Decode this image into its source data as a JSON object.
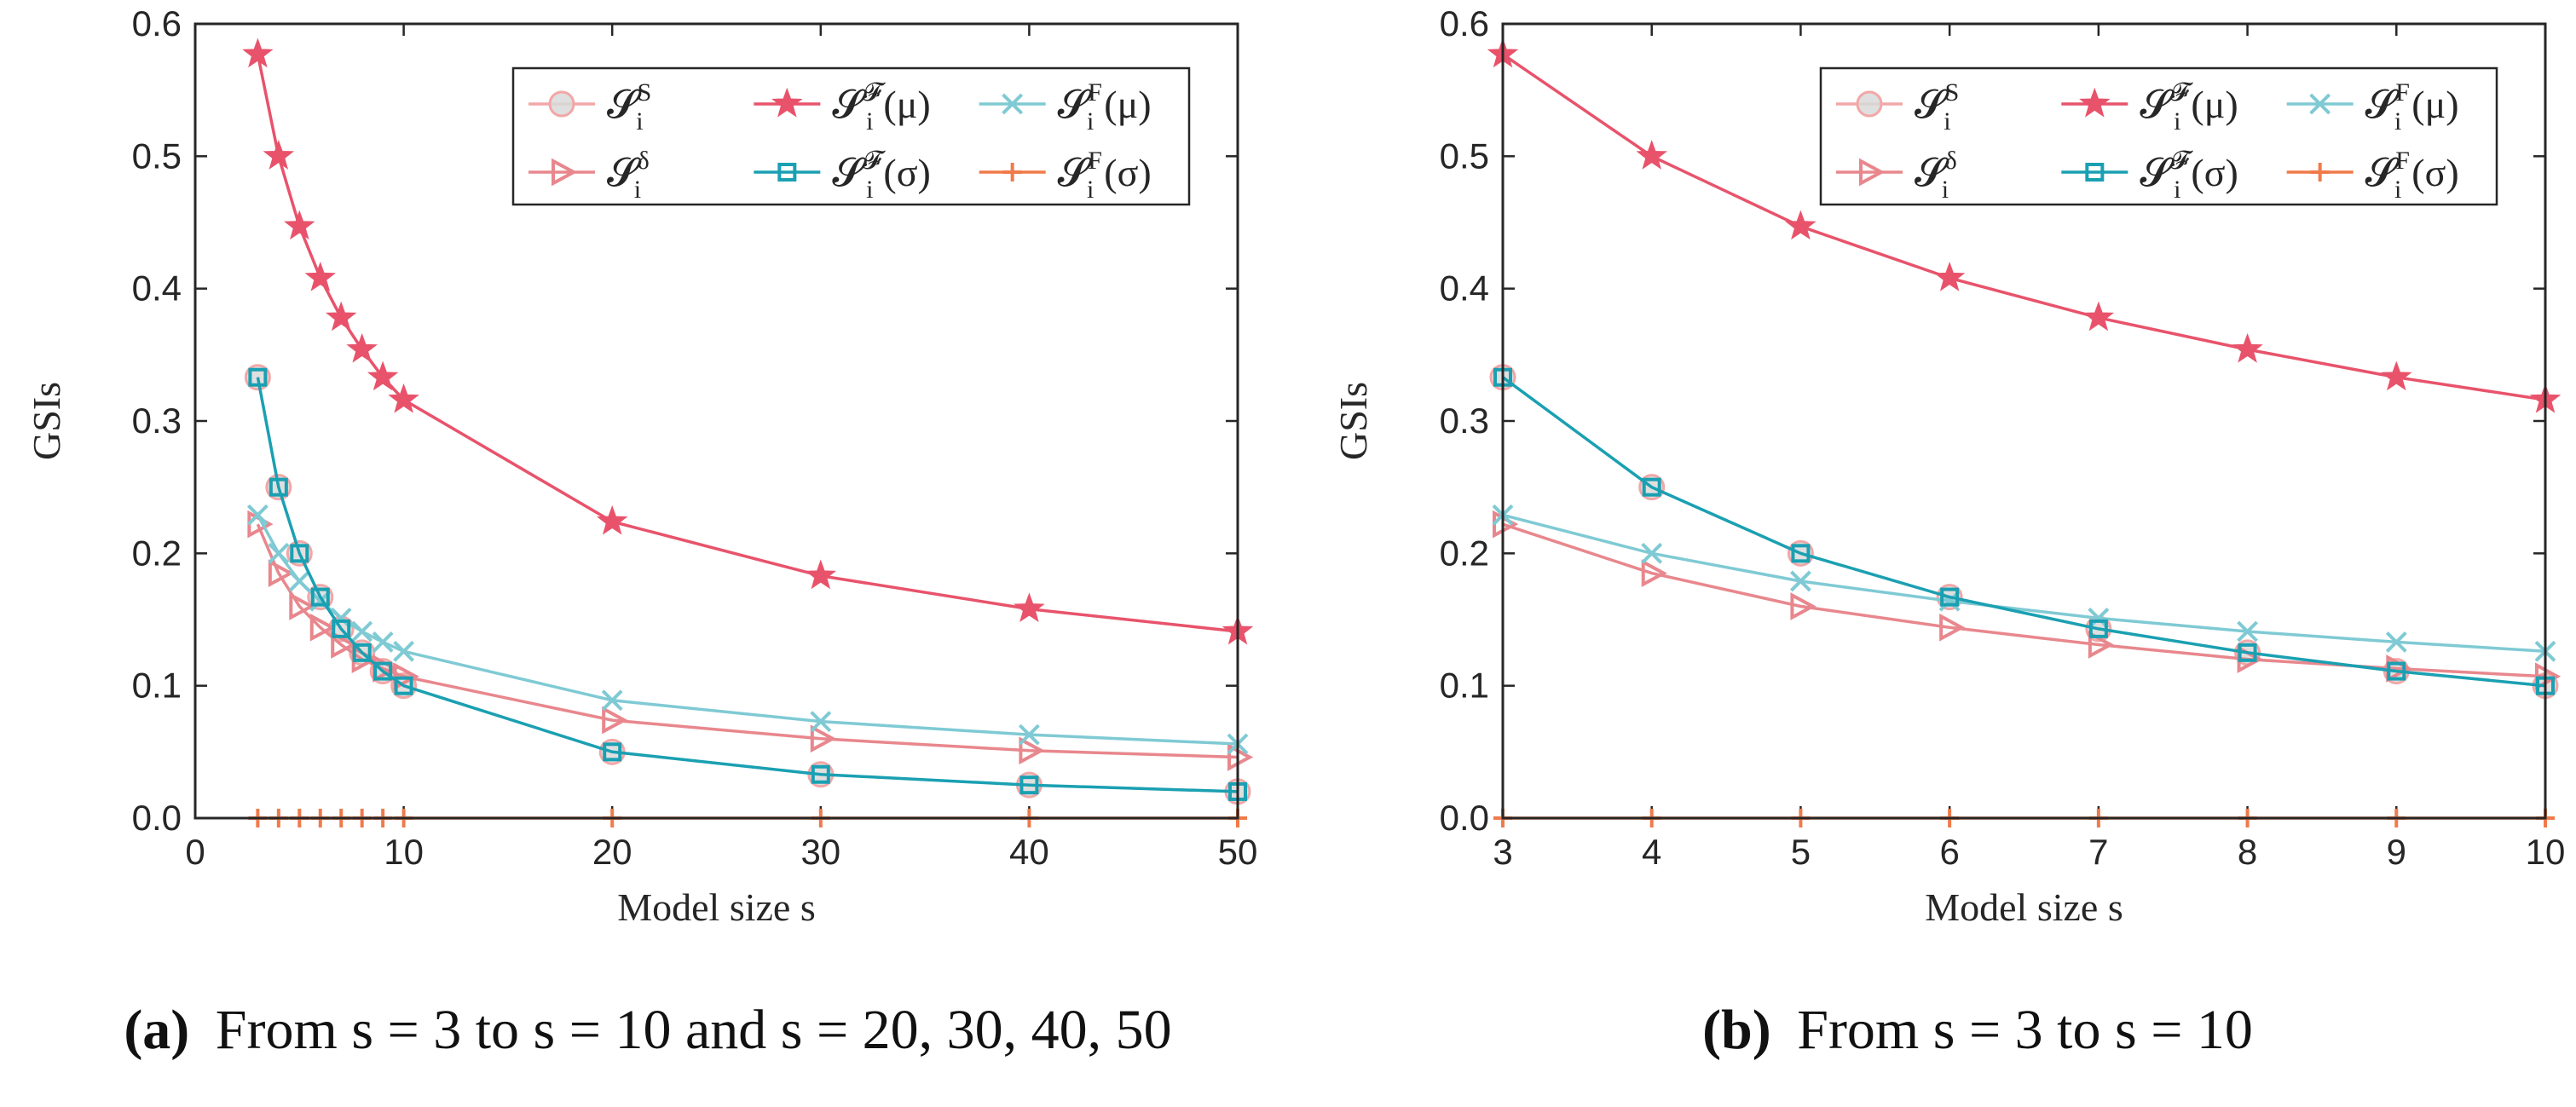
{
  "chart_data": [
    {
      "type": "line",
      "id": "a",
      "caption_label": "(a)",
      "caption_text": "From s = 3 to s = 10 and s = 20, 30, 40, 50",
      "xlabel": "Model size s",
      "ylabel": "GSIs",
      "xlim": [
        0,
        50
      ],
      "ylim": [
        0,
        0.6
      ],
      "xticks": [
        0,
        10,
        20,
        30,
        40,
        50
      ],
      "yticks": [
        0.0,
        0.1,
        0.2,
        0.3,
        0.4,
        0.5,
        0.6
      ],
      "ytick_labels": [
        "0.0",
        "0.1",
        "0.2",
        "0.3",
        "0.4",
        "0.5",
        "0.6"
      ],
      "x": [
        3,
        4,
        5,
        6,
        7,
        8,
        9,
        10,
        20,
        30,
        40,
        50
      ],
      "series": [
        {
          "key": "S_S",
          "name": "S_i^S",
          "values": [
            0.333,
            0.25,
            0.2,
            0.167,
            0.143,
            0.125,
            0.111,
            0.1,
            0.05,
            0.033,
            0.025,
            0.02
          ]
        },
        {
          "key": "S_delta",
          "name": "S_i^δ",
          "values": [
            0.222,
            0.185,
            0.16,
            0.144,
            0.131,
            0.12,
            0.113,
            0.107,
            0.074,
            0.06,
            0.051,
            0.046
          ]
        },
        {
          "key": "S_F_mu",
          "name": "S_i^𝓕(μ)",
          "values": [
            0.577,
            0.5,
            0.447,
            0.408,
            0.378,
            0.354,
            0.333,
            0.316,
            0.224,
            0.183,
            0.158,
            0.141
          ]
        },
        {
          "key": "S_F_sigma",
          "name": "S_i^𝓕(σ)",
          "values": [
            0.333,
            0.25,
            0.2,
            0.167,
            0.143,
            0.125,
            0.111,
            0.1,
            0.05,
            0.033,
            0.025,
            0.02
          ]
        },
        {
          "key": "S_Frm_mu",
          "name": "S_i^F(μ)",
          "values": [
            0.229,
            0.2,
            0.179,
            0.164,
            0.151,
            0.141,
            0.133,
            0.126,
            0.089,
            0.073,
            0.063,
            0.056
          ]
        },
        {
          "key": "S_Frm_sigma",
          "name": "S_i^F(σ)",
          "values": [
            0,
            0,
            0,
            0,
            0,
            0,
            0,
            0,
            0,
            0,
            0,
            0
          ]
        }
      ]
    },
    {
      "type": "line",
      "id": "b",
      "caption_label": "(b)",
      "caption_text": "From s = 3 to s = 10",
      "xlabel": "Model size s",
      "ylabel": "GSIs",
      "xlim": [
        3,
        10
      ],
      "ylim": [
        0,
        0.6
      ],
      "xticks": [
        3,
        4,
        5,
        6,
        7,
        8,
        9,
        10
      ],
      "yticks": [
        0.0,
        0.1,
        0.2,
        0.3,
        0.4,
        0.5,
        0.6
      ],
      "ytick_labels": [
        "0.0",
        "0.1",
        "0.2",
        "0.3",
        "0.4",
        "0.5",
        "0.6"
      ],
      "x": [
        3,
        4,
        5,
        6,
        7,
        8,
        9,
        10
      ],
      "series": [
        {
          "key": "S_S",
          "name": "S_i^S",
          "values": [
            0.333,
            0.25,
            0.2,
            0.167,
            0.143,
            0.125,
            0.111,
            0.1
          ]
        },
        {
          "key": "S_delta",
          "name": "S_i^δ",
          "values": [
            0.222,
            0.185,
            0.16,
            0.144,
            0.131,
            0.12,
            0.113,
            0.107
          ]
        },
        {
          "key": "S_F_mu",
          "name": "S_i^𝓕(μ)",
          "values": [
            0.577,
            0.5,
            0.447,
            0.408,
            0.378,
            0.354,
            0.333,
            0.316
          ]
        },
        {
          "key": "S_F_sigma",
          "name": "S_i^𝓕(σ)",
          "values": [
            0.333,
            0.25,
            0.2,
            0.167,
            0.143,
            0.125,
            0.111,
            0.1
          ]
        },
        {
          "key": "S_Frm_mu",
          "name": "S_i^F(μ)",
          "values": [
            0.229,
            0.2,
            0.179,
            0.164,
            0.151,
            0.141,
            0.133,
            0.126
          ]
        },
        {
          "key": "S_Frm_sigma",
          "name": "S_i^F(σ)",
          "values": [
            0,
            0,
            0,
            0,
            0,
            0,
            0,
            0
          ]
        }
      ]
    }
  ],
  "series_style": {
    "S_S": {
      "color": "#f2a7a7",
      "marker": "circle"
    },
    "S_delta": {
      "color": "#e8878d",
      "marker": "triangle-right"
    },
    "S_F_mu": {
      "color": "#e8536b",
      "marker": "star"
    },
    "S_F_sigma": {
      "color": "#1aa0b2",
      "marker": "square"
    },
    "S_Frm_mu": {
      "color": "#7fcad4",
      "marker": "x"
    },
    "S_Frm_sigma": {
      "color": "#f07a4a",
      "marker": "plus"
    }
  },
  "legend": {
    "placement": "top-right",
    "entries": [
      {
        "key": "S_S",
        "base": "𝓢",
        "sub": "i",
        "sup": "S",
        "tail": ""
      },
      {
        "key": "S_F_mu",
        "base": "𝓢",
        "sub": "i",
        "sup": "𝓕",
        "tail": "(μ)"
      },
      {
        "key": "S_Frm_mu",
        "base": "𝓢",
        "sub": "i",
        "sup": "F",
        "tail": "(μ)"
      },
      {
        "key": "S_delta",
        "base": "𝓢",
        "sub": "i",
        "sup": "δ",
        "tail": ""
      },
      {
        "key": "S_F_sigma",
        "base": "𝓢",
        "sub": "i",
        "sup": "𝓕",
        "tail": "(σ)"
      },
      {
        "key": "S_Frm_sigma",
        "base": "𝓢",
        "sub": "i",
        "sup": "F",
        "tail": "(σ)"
      }
    ]
  }
}
